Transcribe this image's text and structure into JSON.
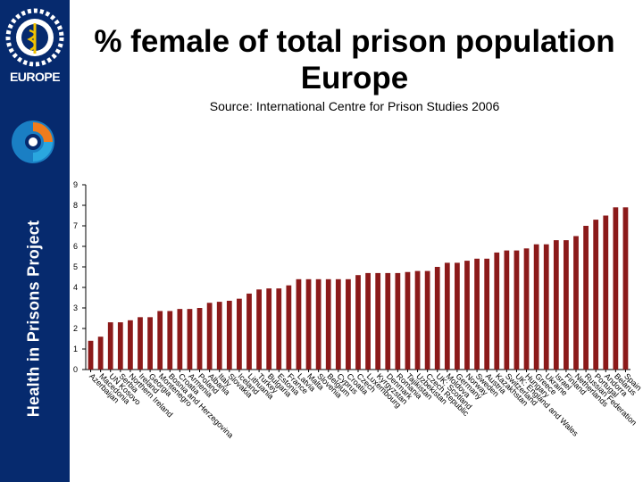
{
  "slide": {
    "title_line1": "% female of total prison population",
    "title_line2": "Europe",
    "subtitle": "Source: International Centre for Prison Studies 2006",
    "sidebar_label": "Health in Prisons Project",
    "logo_text": "EUROPE"
  },
  "colors": {
    "sidebar": "#062a6e",
    "bar": "#8b1a1a"
  },
  "icons": {
    "logo": "who-europe-logo-icon",
    "project": "swirl-icon"
  },
  "chart_data": {
    "type": "bar",
    "title": "% female of total prison population Europe",
    "xlabel": "",
    "ylabel": "",
    "ylim": [
      0,
      9
    ],
    "yticks": [
      0,
      1,
      2,
      3,
      4,
      5,
      6,
      7,
      8,
      9
    ],
    "grid": false,
    "legend": "none",
    "categories": [
      "Azerbaijan",
      "Macedonia",
      "UN Kosovo",
      "Serbia",
      "Northern Ireland",
      "Ireland",
      "Georgia",
      "Montenegro",
      "Bosnia and Herzegovina",
      "Croatia",
      "Armenia",
      "Poland",
      "Albania",
      "Italy",
      "Slovakia",
      "Iceland",
      "Lithuania",
      "Turkey",
      "Bulgaria",
      "Estonia",
      "France",
      "Latvia",
      "Malta",
      "Slovenia",
      "Belgium",
      "Cyprus",
      "Croatia",
      "Czech",
      "Luxembourg",
      "Kyrgyzstan",
      "Denmark",
      "Romania",
      "Tajikistan",
      "Uzbekistan",
      "Czech Republic",
      "UK: Scotland",
      "Moldova",
      "Germany",
      "Norway",
      "Sweden",
      "Austria",
      "Kazakhstan",
      "Switzerland",
      "UK: England and Wales",
      "Hungary",
      "Greece",
      "Ukraine",
      "Israel",
      "Finland",
      "Netherlands",
      "Russian Federation",
      "Portugal",
      "Andorra",
      "Belarus",
      "Spain"
    ],
    "values": [
      1.4,
      1.6,
      2.3,
      2.3,
      2.4,
      2.55,
      2.55,
      2.85,
      2.85,
      2.95,
      2.95,
      3.0,
      3.25,
      3.3,
      3.35,
      3.45,
      3.7,
      3.9,
      3.95,
      3.95,
      4.1,
      4.4,
      4.4,
      4.4,
      4.4,
      4.4,
      4.4,
      4.6,
      4.7,
      4.7,
      4.7,
      4.7,
      4.75,
      4.8,
      4.8,
      5.0,
      5.2,
      5.2,
      5.3,
      5.4,
      5.4,
      5.7,
      5.8,
      5.8,
      5.9,
      6.1,
      6.1,
      6.3,
      6.3,
      6.5,
      7.0,
      7.3,
      7.5,
      7.9,
      7.9
    ]
  }
}
